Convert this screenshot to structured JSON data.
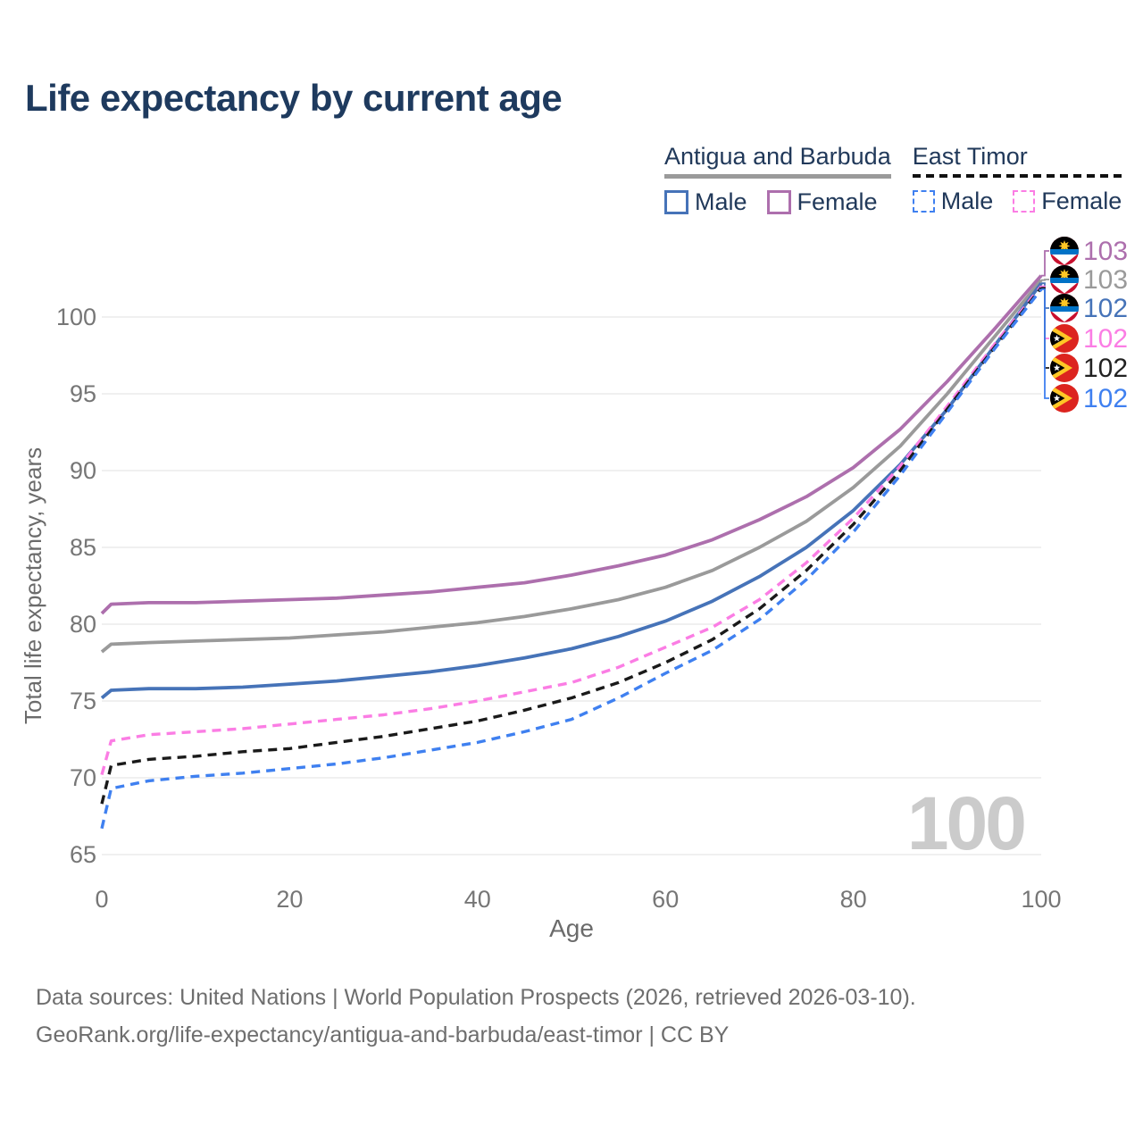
{
  "title": {
    "text": "Life expectancy by current age"
  },
  "legend": {
    "groups": [
      {
        "title": "Antigua and Barbuda",
        "line_style": "solid",
        "underline_color": "#9a9a9a",
        "items": [
          {
            "label": "Male",
            "color": "#4673b8",
            "dashed": false
          },
          {
            "label": "Female",
            "color": "#ad6fad",
            "dashed": false
          }
        ]
      },
      {
        "title": "East Timor",
        "line_style": "dashed",
        "underline_color": "#111111",
        "items": [
          {
            "label": "Male",
            "color": "#3f80f0",
            "dashed": true
          },
          {
            "label": "Female",
            "color": "#fb7de4",
            "dashed": true
          }
        ]
      }
    ]
  },
  "chart_data": {
    "type": "line",
    "title": "Life expectancy by current age",
    "xlabel": "Age",
    "ylabel": "Total life expectancy, years",
    "xlim": [
      0,
      100
    ],
    "ylim": [
      65,
      103.5
    ],
    "x_ticks": [
      0,
      20,
      40,
      60,
      80,
      100
    ],
    "y_ticks": [
      65,
      70,
      75,
      80,
      85,
      90,
      95,
      100
    ],
    "grid": "horizontal",
    "legend_position": "top-right",
    "age_indicator": "100",
    "x": [
      0,
      1,
      5,
      10,
      15,
      20,
      25,
      30,
      35,
      40,
      45,
      50,
      55,
      60,
      65,
      70,
      75,
      80,
      85,
      90,
      95,
      100
    ],
    "series": [
      {
        "name": "Antigua and Barbuda — Female",
        "country": "Antigua and Barbuda",
        "sex": "Female",
        "color": "#ad6fad",
        "dashed": false,
        "flag_icon": "antigua-and-barbuda-flag-icon",
        "end_label": "103",
        "values": [
          80.7,
          81.3,
          81.4,
          81.4,
          81.5,
          81.6,
          81.7,
          81.9,
          82.1,
          82.4,
          82.7,
          83.2,
          83.8,
          84.5,
          85.5,
          86.8,
          88.3,
          90.2,
          92.7,
          95.8,
          99.2,
          102.7
        ]
      },
      {
        "name": "Antigua and Barbuda — Both sexes",
        "country": "Antigua and Barbuda",
        "sex": "Both sexes",
        "color": "#9a9a9a",
        "dashed": false,
        "flag_icon": "antigua-and-barbuda-flag-icon",
        "end_label": "103",
        "values": [
          78.2,
          78.7,
          78.8,
          78.9,
          79.0,
          79.1,
          79.3,
          79.5,
          79.8,
          80.1,
          80.5,
          81.0,
          81.6,
          82.4,
          83.5,
          85.0,
          86.7,
          88.9,
          91.6,
          95.0,
          98.7,
          102.4
        ]
      },
      {
        "name": "Antigua and Barbuda — Male",
        "country": "Antigua and Barbuda",
        "sex": "Male",
        "color": "#4673b8",
        "dashed": false,
        "flag_icon": "antigua-and-barbuda-flag-icon",
        "end_label": "102",
        "values": [
          75.2,
          75.7,
          75.8,
          75.8,
          75.9,
          76.1,
          76.3,
          76.6,
          76.9,
          77.3,
          77.8,
          78.4,
          79.2,
          80.2,
          81.5,
          83.1,
          85.0,
          87.4,
          90.4,
          94.0,
          98.1,
          102.2
        ]
      },
      {
        "name": "East Timor — Female",
        "country": "East Timor",
        "sex": "Female",
        "color": "#fb7de4",
        "dashed": true,
        "flag_icon": "east-timor-flag-icon",
        "end_label": "102",
        "values": [
          70.2,
          72.4,
          72.8,
          73.0,
          73.2,
          73.5,
          73.8,
          74.1,
          74.5,
          75.0,
          75.6,
          76.2,
          77.2,
          78.5,
          79.8,
          81.6,
          84.0,
          86.9,
          90.3,
          94.2,
          98.2,
          102.0
        ]
      },
      {
        "name": "East Timor — Both sexes",
        "country": "East Timor",
        "sex": "Both sexes",
        "color": "#1a1a1a",
        "dashed": true,
        "flag_icon": "east-timor-flag-icon",
        "end_label": "102",
        "values": [
          68.3,
          70.8,
          71.2,
          71.4,
          71.7,
          71.9,
          72.3,
          72.7,
          73.2,
          73.7,
          74.4,
          75.2,
          76.2,
          77.5,
          79.0,
          81.0,
          83.5,
          86.5,
          90.0,
          94.0,
          98.0,
          101.9
        ]
      },
      {
        "name": "East Timor — Male",
        "country": "East Timor",
        "sex": "Male",
        "color": "#3f80f0",
        "dashed": true,
        "flag_icon": "east-timor-flag-icon",
        "end_label": "102",
        "values": [
          66.7,
          69.3,
          69.8,
          70.1,
          70.3,
          70.6,
          70.9,
          71.3,
          71.8,
          72.3,
          73.0,
          73.8,
          75.2,
          76.8,
          78.3,
          80.3,
          82.9,
          86.0,
          89.7,
          93.8,
          97.9,
          101.8
        ]
      }
    ]
  },
  "footer": {
    "line1": "Data sources: United Nations | World Population Prospects (2026, retrieved 2026-03-10).",
    "line2": "GeoRank.org/life-expectancy/antigua-and-barbuda/east-timor | CC BY"
  }
}
